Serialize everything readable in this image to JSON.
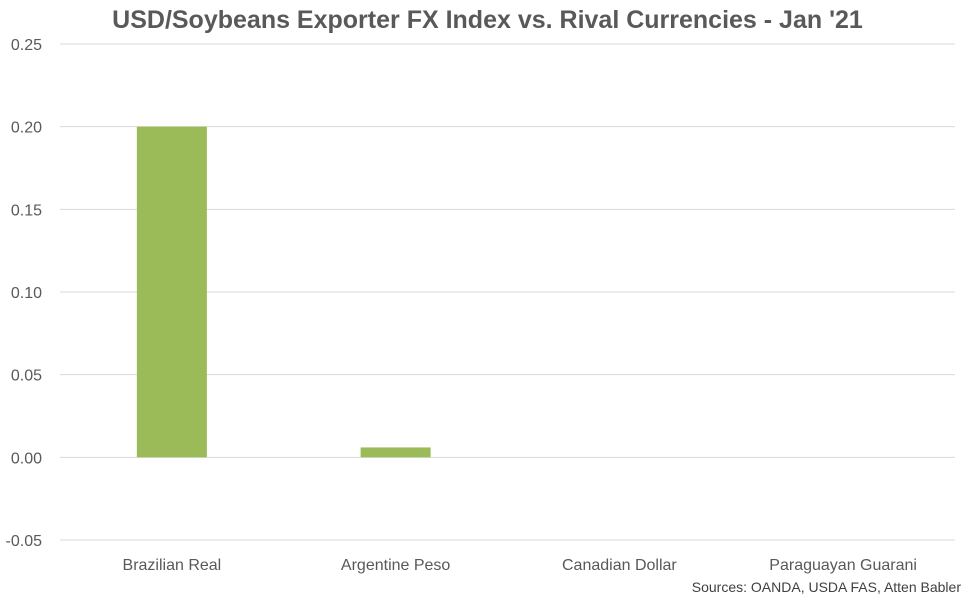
{
  "chart_data": {
    "type": "bar",
    "title": "USD/Soybeans Exporter FX Index vs. Rival Currencies - Jan '21",
    "categories": [
      "Brazilian Real",
      "Argentine Peso",
      "Canadian Dollar",
      "Paraguayan Guarani"
    ],
    "series": [
      {
        "values": [
          0.2,
          0.006,
          0.0,
          0.0
        ],
        "color": "#9BBB59"
      }
    ],
    "ylim": [
      -0.05,
      0.25
    ],
    "yticks": [
      "0.25",
      "0.20",
      "0.15",
      "0.10",
      "0.05",
      "0.00",
      "-0.05"
    ],
    "ytick_values": [
      0.25,
      0.2,
      0.15,
      0.1,
      0.05,
      0.0,
      -0.05
    ],
    "grid": true,
    "legend": "none",
    "xlabel": "",
    "ylabel": ""
  },
  "source_note": "Sources: OANDA, USDA FAS, Atten Babler",
  "colors": {
    "bar": "#9BBB59",
    "grid": "#D9D9D9",
    "text": "#595959"
  }
}
